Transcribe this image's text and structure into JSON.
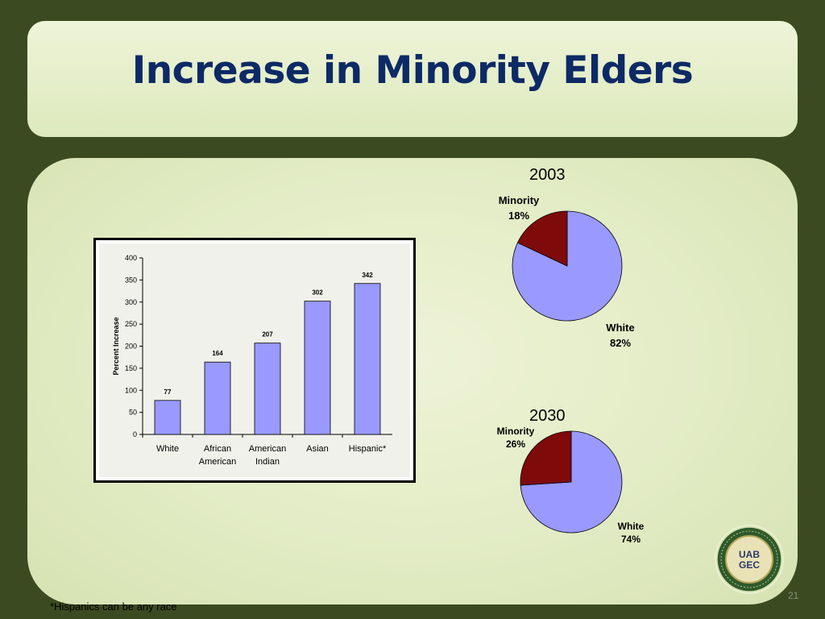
{
  "slide": {
    "title": "Increase in Minority Elders",
    "footnote": "*Hispanics can be any race",
    "page_number": "21",
    "logo_text": "UAB GEC"
  },
  "colors": {
    "background": "#3c4a21",
    "title": "#0d2a66",
    "bar": "#9999ff",
    "white_slice": "#9999ff",
    "minority_slice": "#7f0a0a"
  },
  "chart_data": [
    {
      "type": "bar",
      "categories": [
        [
          "White"
        ],
        [
          "African",
          "American"
        ],
        [
          "American",
          "Indian"
        ],
        [
          "Asian"
        ],
        [
          "Hispanic*"
        ]
      ],
      "values": [
        77,
        164,
        207,
        302,
        342
      ],
      "title": "",
      "xlabel": "",
      "ylabel": "Percent Increase",
      "ylim": [
        0,
        400
      ],
      "yticks": [
        0,
        50,
        100,
        150,
        200,
        250,
        300,
        350,
        400
      ],
      "grid": false,
      "data_labels": true
    },
    {
      "type": "pie",
      "title": "2003",
      "slices": [
        {
          "label": "Minority",
          "pct_label": "18%",
          "value": 18
        },
        {
          "label": "White",
          "pct_label": "82%",
          "value": 82
        }
      ]
    },
    {
      "type": "pie",
      "title": "2030",
      "slices": [
        {
          "label": "Minority",
          "pct_label": "26%",
          "value": 26
        },
        {
          "label": "White",
          "pct_label": "74%",
          "value": 74
        }
      ]
    }
  ]
}
